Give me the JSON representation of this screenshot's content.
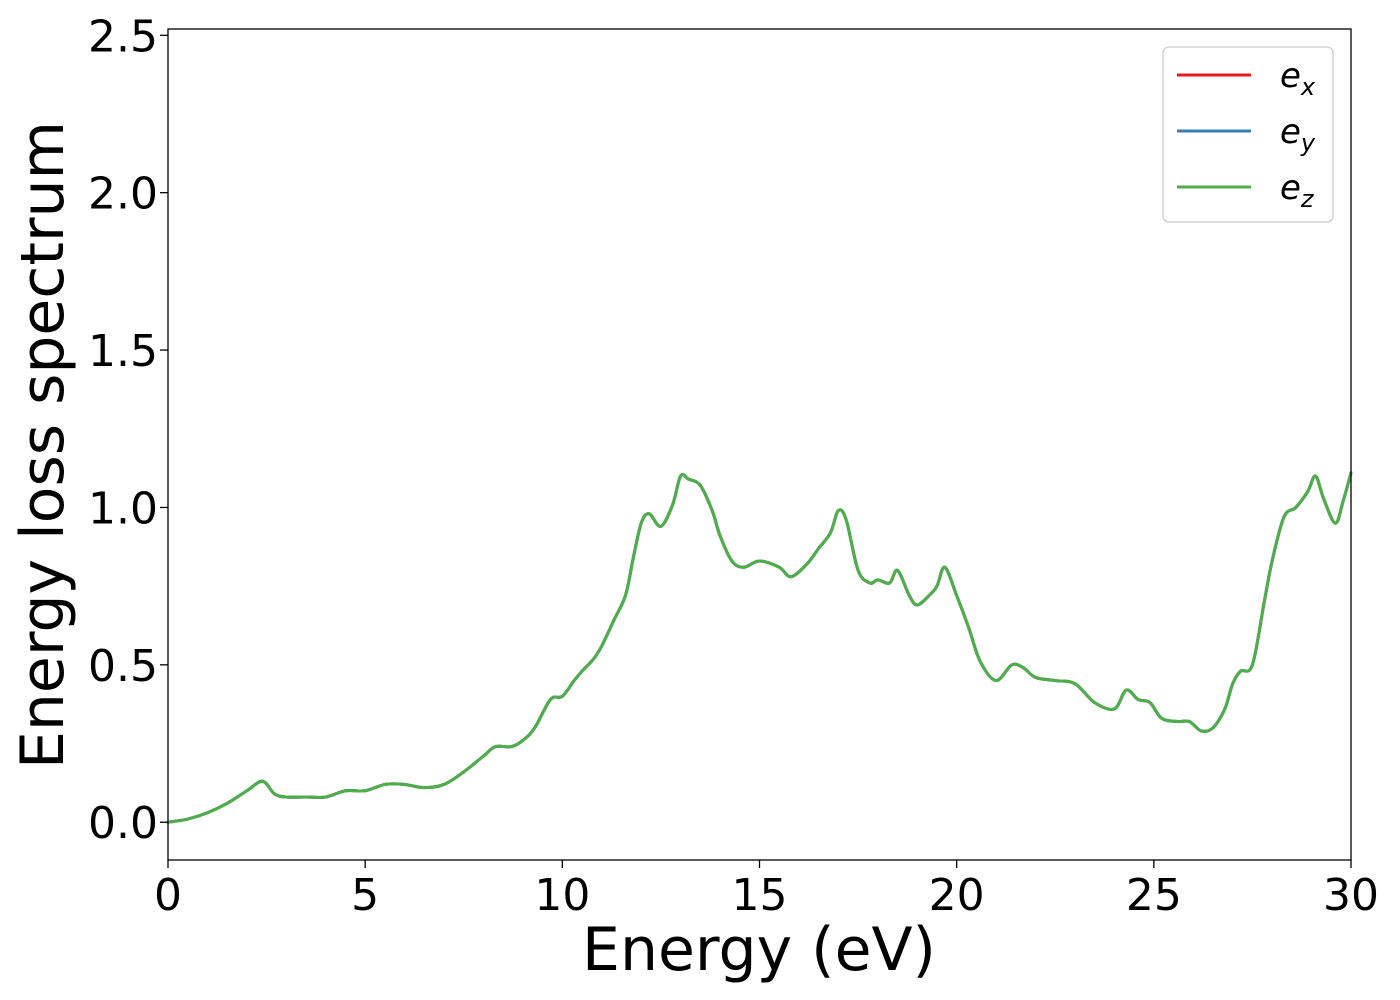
{
  "chart_data": {
    "type": "line",
    "title": "",
    "xlabel": "Energy (eV)",
    "ylabel": "Energy loss spectrum",
    "xlim": [
      0,
      30
    ],
    "ylim": [
      -0.12,
      2.52
    ],
    "xticks": [
      "0",
      "5",
      "10",
      "15",
      "20",
      "25",
      "30"
    ],
    "yticks": [
      "0.0",
      "0.5",
      "1.0",
      "1.5",
      "2.0",
      "2.5"
    ],
    "grid": false,
    "legend_position": "top-right",
    "x": [
      0.0,
      0.5,
      1.0,
      1.5,
      2.0,
      2.4,
      2.7,
      3.0,
      3.5,
      4.0,
      4.5,
      5.0,
      5.5,
      6.0,
      6.5,
      7.0,
      7.5,
      8.0,
      8.3,
      8.7,
      9.0,
      9.3,
      9.7,
      10.0,
      10.3,
      10.5,
      10.8,
      11.0,
      11.3,
      11.6,
      11.8,
      12.0,
      12.2,
      12.5,
      12.8,
      13.0,
      13.2,
      13.5,
      13.8,
      14.0,
      14.3,
      14.6,
      15.0,
      15.5,
      15.8,
      16.2,
      16.5,
      16.8,
      17.0,
      17.2,
      17.5,
      17.8,
      18.0,
      18.3,
      18.5,
      18.8,
      19.0,
      19.3,
      19.5,
      19.7,
      20.0,
      20.3,
      20.6,
      21.0,
      21.4,
      21.7,
      22.0,
      22.5,
      23.0,
      23.5,
      24.0,
      24.3,
      24.6,
      24.9,
      25.2,
      25.6,
      25.9,
      26.2,
      26.5,
      26.8,
      27.0,
      27.2,
      27.5,
      27.8,
      28.0,
      28.3,
      28.6,
      28.9,
      29.1,
      29.3,
      29.6,
      29.8,
      30.0
    ],
    "series": [
      {
        "name": "e_x",
        "color": "#e41a1c",
        "values": [
          0.0,
          0.01,
          0.03,
          0.06,
          0.1,
          0.13,
          0.09,
          0.08,
          0.08,
          0.08,
          0.1,
          0.1,
          0.12,
          0.12,
          0.11,
          0.12,
          0.16,
          0.21,
          0.24,
          0.24,
          0.26,
          0.3,
          0.39,
          0.4,
          0.45,
          0.48,
          0.52,
          0.56,
          0.64,
          0.72,
          0.84,
          0.95,
          0.98,
          0.94,
          1.01,
          1.1,
          1.09,
          1.07,
          0.99,
          0.91,
          0.83,
          0.81,
          0.83,
          0.81,
          0.78,
          0.82,
          0.87,
          0.92,
          0.99,
          0.96,
          0.8,
          0.76,
          0.77,
          0.76,
          0.8,
          0.72,
          0.69,
          0.72,
          0.75,
          0.81,
          0.72,
          0.62,
          0.51,
          0.45,
          0.5,
          0.49,
          0.46,
          0.45,
          0.44,
          0.38,
          0.36,
          0.42,
          0.39,
          0.38,
          0.33,
          0.32,
          0.32,
          0.29,
          0.3,
          0.36,
          0.44,
          0.48,
          0.5,
          0.7,
          0.83,
          0.97,
          1.0,
          1.05,
          1.1,
          1.03,
          0.95,
          1.02,
          1.11
        ]
      },
      {
        "name": "e_y",
        "color": "#377eb8",
        "values": [
          0.0,
          0.01,
          0.03,
          0.06,
          0.1,
          0.13,
          0.09,
          0.08,
          0.08,
          0.08,
          0.1,
          0.1,
          0.12,
          0.12,
          0.11,
          0.12,
          0.16,
          0.21,
          0.24,
          0.24,
          0.26,
          0.3,
          0.39,
          0.4,
          0.45,
          0.48,
          0.52,
          0.56,
          0.64,
          0.72,
          0.84,
          0.95,
          0.98,
          0.94,
          1.01,
          1.1,
          1.09,
          1.07,
          0.99,
          0.91,
          0.83,
          0.81,
          0.83,
          0.81,
          0.78,
          0.82,
          0.87,
          0.92,
          0.99,
          0.96,
          0.8,
          0.76,
          0.77,
          0.76,
          0.8,
          0.72,
          0.69,
          0.72,
          0.75,
          0.81,
          0.72,
          0.62,
          0.51,
          0.45,
          0.5,
          0.49,
          0.46,
          0.45,
          0.44,
          0.38,
          0.36,
          0.42,
          0.39,
          0.38,
          0.33,
          0.32,
          0.32,
          0.29,
          0.3,
          0.36,
          0.44,
          0.48,
          0.5,
          0.7,
          0.83,
          0.97,
          1.0,
          1.05,
          1.1,
          1.03,
          0.95,
          1.02,
          1.11
        ]
      },
      {
        "name": "e_z",
        "color": "#4daf4a",
        "values": [
          0.0,
          0.01,
          0.03,
          0.06,
          0.1,
          0.13,
          0.09,
          0.08,
          0.08,
          0.08,
          0.1,
          0.1,
          0.12,
          0.12,
          0.11,
          0.12,
          0.16,
          0.21,
          0.24,
          0.24,
          0.26,
          0.3,
          0.39,
          0.4,
          0.45,
          0.48,
          0.52,
          0.56,
          0.64,
          0.72,
          0.84,
          0.95,
          0.98,
          0.94,
          1.01,
          1.1,
          1.09,
          1.07,
          0.99,
          0.91,
          0.83,
          0.81,
          0.83,
          0.81,
          0.78,
          0.82,
          0.87,
          0.92,
          0.99,
          0.96,
          0.8,
          0.76,
          0.77,
          0.76,
          0.8,
          0.72,
          0.69,
          0.72,
          0.75,
          0.81,
          0.72,
          0.62,
          0.51,
          0.45,
          0.5,
          0.49,
          0.46,
          0.45,
          0.44,
          0.38,
          0.36,
          0.42,
          0.39,
          0.38,
          0.33,
          0.32,
          0.32,
          0.29,
          0.3,
          0.36,
          0.44,
          0.48,
          0.5,
          0.7,
          0.83,
          0.97,
          1.0,
          1.05,
          1.1,
          1.03,
          0.95,
          1.02,
          1.11
        ]
      }
    ],
    "legend": [
      {
        "base": "e",
        "sub": "x",
        "color": "#e41a1c"
      },
      {
        "base": "e",
        "sub": "y",
        "color": "#377eb8"
      },
      {
        "base": "e",
        "sub": "z",
        "color": "#4daf4a"
      }
    ]
  }
}
